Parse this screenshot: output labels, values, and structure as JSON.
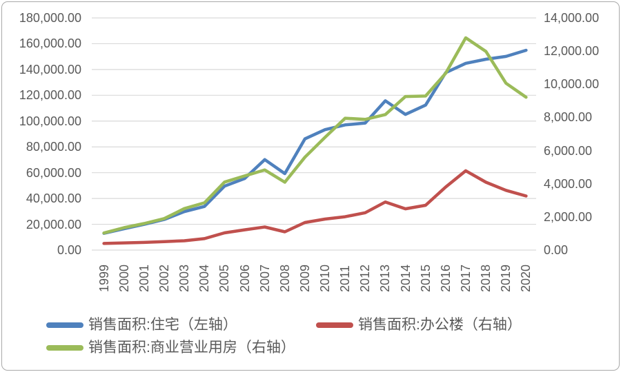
{
  "chart_data": {
    "type": "line",
    "x": [
      "1999",
      "2000",
      "2001",
      "2002",
      "2003",
      "2004",
      "2005",
      "2006",
      "2007",
      "2008",
      "2009",
      "2010",
      "2011",
      "2012",
      "2013",
      "2014",
      "2015",
      "2016",
      "2017",
      "2018",
      "2019",
      "2020"
    ],
    "series": [
      {
        "name": "销售面积:住宅（左轴）",
        "axis": "left",
        "color": "#4F81BD",
        "values": [
          12998,
          16570,
          19939,
          23702,
          29779,
          33820,
          49588,
          55423,
          70136,
          59280,
          86185,
          93377,
          97030,
          98468,
          115723,
          105182,
          112406,
          137540,
          144789,
          147929,
          150144,
          154878
        ]
      },
      {
        "name": "销售面积:办公楼（右轴）",
        "axis": "right",
        "color": "#C0504D",
        "values": [
          400,
          430,
          460,
          510,
          560,
          690,
          1040,
          1220,
          1390,
          1100,
          1660,
          1870,
          2010,
          2250,
          2900,
          2490,
          2700,
          3800,
          4780,
          4090,
          3600,
          3260
        ]
      },
      {
        "name": "销售面积:商业营业用房（右轴）",
        "axis": "right",
        "color": "#9BBB59",
        "values": [
          1030,
          1350,
          1600,
          1900,
          2500,
          2850,
          4100,
          4470,
          4830,
          4090,
          5600,
          6800,
          7950,
          7880,
          8170,
          9260,
          9290,
          10660,
          12800,
          11980,
          10060,
          9220
        ]
      }
    ],
    "left_axis": {
      "min": 0,
      "max": 180000,
      "step": 20000,
      "tick_labels": [
        "180,000.00",
        "160,000.00",
        "140,000.00",
        "120,000.00",
        "100,000.00",
        "80,000.00",
        "60,000.00",
        "40,000.00",
        "20,000.00",
        "0.00"
      ]
    },
    "right_axis": {
      "min": 0,
      "max": 14000,
      "step": 2000,
      "tick_labels": [
        "14,000.00",
        "12,000.00",
        "10,000.00",
        "8,000.00",
        "6,000.00",
        "4,000.00",
        "2,000.00",
        "0.00"
      ]
    },
    "grid": true,
    "legend_position": "bottom-left",
    "legend": [
      {
        "label": "销售面积:住宅（左轴）",
        "color": "#4F81BD"
      },
      {
        "label": "销售面积:办公楼（右轴）",
        "color": "#C0504D"
      },
      {
        "label": "销售面积:商业营业用房（右轴）",
        "color": "#9BBB59"
      }
    ]
  },
  "colors": {
    "background": "#FFFFFF",
    "gridline": "#D9D9D9",
    "axis_text": "#595959",
    "border": "#A8A8A8",
    "series_residential": "#4F81BD",
    "series_office": "#C0504D",
    "series_commercial": "#9BBB59"
  }
}
